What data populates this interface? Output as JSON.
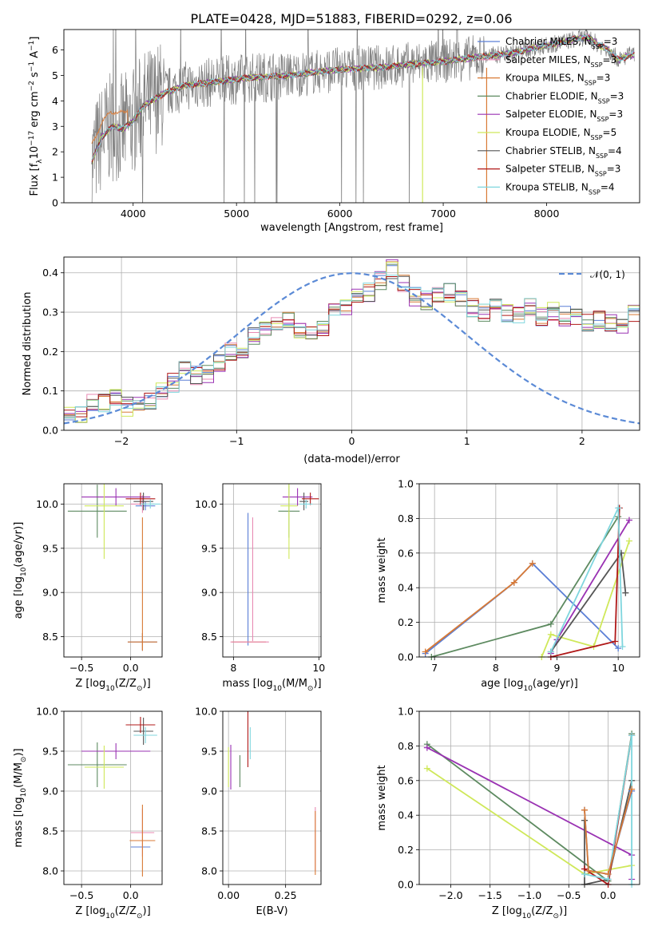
{
  "figure": {
    "title": "PLATE=0428, MJD=51883, FIBERID=0292, z=0.06"
  },
  "colors": {
    "chabrier_miles": "#5b7fd6",
    "salpeter_miles": "#e88ab3",
    "kroupa_miles": "#d97a35",
    "chabrier_elodie": "#5d8a60",
    "salpeter_elodie": "#9a32b3",
    "kroupa_elodie": "#cfe85a",
    "chabrier_stelib": "#555555",
    "salpeter_stelib": "#b01818",
    "kroupa_stelib": "#7fd6de",
    "data": "#808080",
    "gaussian": "#5b8ad6"
  },
  "legend_entries": [
    {
      "name": "Chabrier MILES",
      "suffix": "=3",
      "color": "#5b7fd6"
    },
    {
      "name": "Salpeter MILES",
      "suffix": "=3",
      "color": "#e88ab3"
    },
    {
      "name": "Kroupa MILES",
      "suffix": "=3",
      "color": "#d97a35"
    },
    {
      "name": "Chabrier ELODIE",
      "suffix": "=3",
      "color": "#5d8a60"
    },
    {
      "name": "Salpeter ELODIE",
      "suffix": "=3",
      "color": "#9a32b3"
    },
    {
      "name": "Kroupa ELODIE",
      "suffix": "=5",
      "color": "#cfe85a"
    },
    {
      "name": "Chabrier STELIB",
      "suffix": "=4",
      "color": "#555555"
    },
    {
      "name": "Salpeter STELIB",
      "suffix": "=3",
      "color": "#b01818"
    },
    {
      "name": "Kroupa STELIB",
      "suffix": "=4",
      "color": "#7fd6de"
    }
  ],
  "legend_nssp_prefix": "N",
  "legend_nssp_sub": "SSP",
  "gauss_legend": "𝒩(0, 1)",
  "chart_data": [
    {
      "id": "spectrum",
      "type": "line",
      "xlabel": "wavelength [Angstrom, rest frame]",
      "ylabel_parts": [
        "Flux [f",
        "λ",
        "10",
        "−17",
        " erg cm",
        "−2",
        " s",
        "−1",
        " A",
        "−1",
        "]"
      ],
      "xlim": [
        3330,
        8900
      ],
      "ylim": [
        0,
        6.8
      ],
      "xticks": [
        4000,
        5000,
        6000,
        7000,
        8000
      ],
      "yticks": [
        0,
        1,
        2,
        3,
        4,
        5,
        6
      ],
      "grid": false,
      "legend_position": "right",
      "model_continuum": [
        [
          3600,
          1.6
        ],
        [
          3700,
          2.6
        ],
        [
          3800,
          3.0
        ],
        [
          3900,
          2.9
        ],
        [
          4000,
          3.2
        ],
        [
          4100,
          3.8
        ],
        [
          4300,
          4.3
        ],
        [
          4500,
          4.6
        ],
        [
          4700,
          4.7
        ],
        [
          4900,
          4.8
        ],
        [
          5100,
          4.9
        ],
        [
          5300,
          4.95
        ],
        [
          5500,
          5.0
        ],
        [
          5700,
          5.1
        ],
        [
          5900,
          5.2
        ],
        [
          6100,
          5.25
        ],
        [
          6300,
          5.3
        ],
        [
          6500,
          5.35
        ],
        [
          6700,
          5.45
        ],
        [
          6900,
          5.5
        ],
        [
          7100,
          5.6
        ],
        [
          7300,
          5.7
        ],
        [
          7500,
          5.8
        ],
        [
          7700,
          5.9
        ],
        [
          7900,
          6.1
        ],
        [
          8100,
          6.25
        ],
        [
          8300,
          6.45
        ],
        [
          8400,
          6.5
        ],
        [
          8500,
          6.2
        ],
        [
          8600,
          6.0
        ],
        [
          8700,
          5.6
        ],
        [
          8800,
          5.8
        ]
      ],
      "kroupa_miles_end": 7420
    },
    {
      "id": "residual-histogram",
      "type": "bar",
      "xlabel": "(data-model)/error",
      "ylabel": "Normed distribution",
      "xlim": [
        -2.5,
        2.5
      ],
      "ylim": [
        0,
        0.44
      ],
      "xticks": [
        -2,
        -1,
        0,
        1,
        2
      ],
      "yticks": [
        0.0,
        0.1,
        0.2,
        0.3,
        0.4
      ],
      "grid": true,
      "bin_width": 0.1,
      "bin_start": -2.5,
      "base_values": [
        0.05,
        0.04,
        0.07,
        0.07,
        0.08,
        0.06,
        0.07,
        0.07,
        0.1,
        0.12,
        0.15,
        0.14,
        0.14,
        0.17,
        0.2,
        0.2,
        0.24,
        0.26,
        0.27,
        0.28,
        0.25,
        0.24,
        0.26,
        0.3,
        0.31,
        0.34,
        0.35,
        0.38,
        0.41,
        0.37,
        0.34,
        0.33,
        0.34,
        0.35,
        0.33,
        0.31,
        0.3,
        0.31,
        0.3,
        0.29,
        0.31,
        0.29,
        0.3,
        0.29,
        0.29,
        0.27,
        0.28,
        0.27,
        0.27,
        0.3,
        0.25,
        0.24,
        0.24,
        0.22,
        0.2,
        0.2,
        0.18,
        0.17,
        0.15,
        0.15,
        0.13,
        0.12,
        0.12,
        0.1,
        0.09,
        0.08,
        0.07,
        0.07,
        0.06,
        0.06,
        0.06,
        0.05,
        0.05,
        0.04,
        0.04,
        0.04,
        0.04,
        0.04,
        0.04,
        0.04,
        0.04,
        0.04,
        0.04,
        0.04,
        0.04,
        0.04,
        0.04,
        0.04,
        0.04,
        0.04,
        0.04,
        0.04,
        0.04,
        0.04,
        0.04,
        0.04,
        0.04,
        0.04,
        0.04,
        0.04
      ],
      "gaussian": {
        "mean": 0,
        "sigma": 1
      }
    },
    {
      "id": "age-vs-z",
      "type": "scatter",
      "xlabel_parts": [
        "Z [log",
        "10",
        "(Z/Z",
        "⊙",
        ")]"
      ],
      "ylabel_parts": [
        "age  [log",
        "10",
        "(age/yr)]"
      ],
      "xlim": [
        -0.68,
        0.32
      ],
      "ylim": [
        8.27,
        10.23
      ],
      "xticks": [
        -0.5,
        0.0
      ],
      "yticks": [
        8.5,
        9.0,
        9.5,
        10.0
      ],
      "grid": true,
      "errorbars": [
        {
          "series": "chabrier_miles",
          "x": 0.15,
          "y": 9.98,
          "xerr": 0.1,
          "yerr": 0.05
        },
        {
          "series": "salpeter_miles",
          "x": 0.12,
          "y": 10.0,
          "xerr": 0.12,
          "yerr": 0.1
        },
        {
          "series": "chabrier_elodie",
          "x": -0.34,
          "y": 9.92,
          "xerr": 0.3,
          "yerr": 0.3
        },
        {
          "series": "salpeter_elodie",
          "x": -0.15,
          "y": 10.08,
          "xerr": 0.35,
          "yerr": 0.1
        },
        {
          "series": "kroupa_elodie",
          "x": -0.27,
          "y": 9.98,
          "xerr": 0.2,
          "yerr": 0.6
        },
        {
          "series": "chabrier_stelib",
          "x": 0.13,
          "y": 10.03,
          "xerr": 0.1,
          "yerr": 0.1
        },
        {
          "series": "salpeter_stelib",
          "x": 0.1,
          "y": 10.06,
          "xerr": 0.15,
          "yerr": 0.07
        },
        {
          "series": "kroupa_stelib",
          "x": 0.2,
          "y": 10.0,
          "xerr": 0.1,
          "yerr": 0.05
        },
        {
          "series": "chabrier_miles",
          "x": 0.12,
          "y": 8.44,
          "xerr": 0.15,
          "yerr": 0.1
        },
        {
          "series": "kroupa_miles",
          "x": 0.12,
          "y": 8.44,
          "xerr": 0.15,
          "yerr": 0.1
        },
        {
          "series": "kroupa_miles",
          "x": 0.12,
          "y": 9.1,
          "xerr": 0.0,
          "yerr": 0.75
        }
      ]
    },
    {
      "id": "age-vs-mass",
      "type": "scatter",
      "xlabel_parts": [
        "mass [log",
        "10",
        "(M/M",
        "⊙",
        ")]"
      ],
      "ylabel_parts": [],
      "xlim": [
        7.75,
        10.05
      ],
      "ylim": [
        8.27,
        10.23
      ],
      "xticks": [
        8,
        10
      ],
      "yticks": [
        8.5,
        9.0,
        9.5,
        10.0
      ],
      "grid": true,
      "errorbars": [
        {
          "series": "chabrier_miles",
          "x": 8.34,
          "y": 9.15,
          "xerr": 0.0,
          "yerr": 0.75
        },
        {
          "series": "salpeter_miles",
          "x": 8.45,
          "y": 9.15,
          "xerr": 0.0,
          "yerr": 0.7
        },
        {
          "series": "kroupa_miles",
          "x": 8.36,
          "y": 8.44,
          "xerr": 0.4,
          "yerr": 0.0
        },
        {
          "series": "salpeter_miles",
          "x": 8.38,
          "y": 8.44,
          "xerr": 0.45,
          "yerr": 0.0
        },
        {
          "series": "chabrier_elodie",
          "x": 9.3,
          "y": 9.92,
          "xerr": 0.25,
          "yerr": 0.3
        },
        {
          "series": "salpeter_elodie",
          "x": 9.5,
          "y": 10.08,
          "xerr": 0.35,
          "yerr": 0.1
        },
        {
          "series": "kroupa_elodie",
          "x": 9.3,
          "y": 9.98,
          "xerr": 0.2,
          "yerr": 0.6
        },
        {
          "series": "chabrier_stelib",
          "x": 9.65,
          "y": 10.03,
          "xerr": 0.1,
          "yerr": 0.1
        },
        {
          "series": "salpeter_stelib",
          "x": 9.8,
          "y": 10.06,
          "xerr": 0.2,
          "yerr": 0.07
        },
        {
          "series": "kroupa_stelib",
          "x": 9.7,
          "y": 10.0,
          "xerr": 0.15,
          "yerr": 0.05
        }
      ]
    },
    {
      "id": "massweight-vs-age",
      "type": "line",
      "xlabel_parts": [
        "age  [log",
        "10",
        "(age/yr)]"
      ],
      "ylabel": "mass weight",
      "xlim": [
        6.75,
        10.35
      ],
      "ylim": [
        0,
        1.0
      ],
      "xticks": [
        7,
        8,
        9,
        10
      ],
      "yticks": [
        0.0,
        0.2,
        0.4,
        0.6,
        0.8,
        1.0
      ],
      "grid": true,
      "series": [
        {
          "name": "chabrier_miles",
          "points": [
            [
              6.85,
              0.02
            ],
            [
              8.3,
              0.43
            ],
            [
              8.6,
              0.54
            ],
            [
              10.0,
              0.05
            ]
          ]
        },
        {
          "name": "kroupa_miles",
          "points": [
            [
              6.85,
              0.03
            ],
            [
              8.3,
              0.43
            ],
            [
              8.6,
              0.54
            ]
          ]
        },
        {
          "name": "chabrier_elodie",
          "points": [
            [
              6.95,
              0.0
            ],
            [
              8.9,
              0.19
            ],
            [
              10.0,
              0.81
            ]
          ]
        },
        {
          "name": "salpeter_elodie",
          "points": [
            [
              8.9,
              0.02
            ],
            [
              9.0,
              0.1
            ],
            [
              10.18,
              0.79
            ]
          ]
        },
        {
          "name": "kroupa_elodie",
          "points": [
            [
              8.75,
              0.0
            ],
            [
              8.9,
              0.13
            ],
            [
              9.6,
              0.06
            ],
            [
              10.18,
              0.67
            ]
          ]
        },
        {
          "name": "chabrier_stelib",
          "points": [
            [
              8.9,
              0.03
            ],
            [
              10.05,
              0.6
            ],
            [
              10.12,
              0.37
            ]
          ]
        },
        {
          "name": "salpeter_stelib",
          "points": [
            [
              8.9,
              0.0
            ],
            [
              9.95,
              0.09
            ],
            [
              10.02,
              0.86
            ]
          ]
        },
        {
          "name": "kroupa_stelib",
          "points": [
            [
              8.9,
              0.03
            ],
            [
              10.0,
              0.86
            ],
            [
              10.07,
              0.06
            ]
          ]
        }
      ]
    },
    {
      "id": "mass-vs-z",
      "type": "scatter",
      "xlabel_parts": [
        "Z [log",
        "10",
        "(Z/Z",
        "⊙",
        ")]"
      ],
      "ylabel_parts": [
        "mass [log",
        "10",
        "(M/M",
        "⊙",
        ")]"
      ],
      "xlim": [
        -0.68,
        0.32
      ],
      "ylim": [
        7.83,
        10.0
      ],
      "xticks": [
        -0.5,
        0.0
      ],
      "yticks": [
        8.0,
        8.5,
        9.0,
        9.5,
        10.0
      ],
      "grid": true,
      "errorbars": [
        {
          "series": "chabrier_miles",
          "x": 0.1,
          "y": 8.3,
          "xerr": 0.1,
          "yerr": 0.0
        },
        {
          "series": "salpeter_miles",
          "x": 0.12,
          "y": 8.48,
          "xerr": 0.12,
          "yerr": 0.3
        },
        {
          "series": "kroupa_miles",
          "x": 0.12,
          "y": 8.38,
          "xerr": 0.13,
          "yerr": 0.45
        },
        {
          "series": "chabrier_elodie",
          "x": -0.34,
          "y": 9.33,
          "xerr": 0.3,
          "yerr": 0.28
        },
        {
          "series": "salpeter_elodie",
          "x": -0.15,
          "y": 9.5,
          "xerr": 0.35,
          "yerr": 0.1
        },
        {
          "series": "kroupa_elodie",
          "x": -0.27,
          "y": 9.3,
          "xerr": 0.2,
          "yerr": 0.27
        },
        {
          "series": "chabrier_stelib",
          "x": 0.13,
          "y": 9.75,
          "xerr": 0.1,
          "yerr": 0.17
        },
        {
          "series": "salpeter_stelib",
          "x": 0.1,
          "y": 9.83,
          "xerr": 0.15,
          "yerr": 0.1
        },
        {
          "series": "kroupa_stelib",
          "x": 0.15,
          "y": 9.7,
          "xerr": 0.12,
          "yerr": 0.1
        }
      ]
    },
    {
      "id": "mass-vs-ebv",
      "type": "scatter",
      "xlabel": "E(B-V)",
      "ylabel_parts": [],
      "xlim": [
        -0.025,
        0.405
      ],
      "ylim": [
        7.83,
        10.0
      ],
      "xticks": [
        0.0,
        0.25
      ],
      "xtick_labels": [
        "0.00",
        "0.25"
      ],
      "yticks": [
        8.0,
        8.5,
        9.0,
        9.5,
        10.0
      ],
      "grid": true,
      "errorbars": [
        {
          "series": "kroupa_elodie",
          "x": 0.0,
          "y": 9.3,
          "xerr": 0.0,
          "yerr": 0.25
        },
        {
          "series": "salpeter_elodie",
          "x": 0.01,
          "y": 9.3,
          "xerr": 0.0,
          "yerr": 0.28
        },
        {
          "series": "chabrier_elodie",
          "x": 0.05,
          "y": 9.25,
          "xerr": 0.0,
          "yerr": 0.2
        },
        {
          "series": "salpeter_stelib",
          "x": 0.085,
          "y": 9.65,
          "xerr": 0.0,
          "yerr": 0.35
        },
        {
          "series": "kroupa_stelib",
          "x": 0.095,
          "y": 9.6,
          "xerr": 0.0,
          "yerr": 0.2
        },
        {
          "series": "salpeter_miles",
          "x": 0.38,
          "y": 8.4,
          "xerr": 0.0,
          "yerr": 0.4
        },
        {
          "series": "kroupa_miles",
          "x": 0.38,
          "y": 8.35,
          "xerr": 0.0,
          "yerr": 0.4
        }
      ]
    },
    {
      "id": "massweight-vs-z",
      "type": "line",
      "xlabel_parts": [
        "Z [log",
        "10",
        "(Z/Z",
        "⊙",
        ")]"
      ],
      "ylabel": "mass weight",
      "xlim": [
        -2.4,
        0.4
      ],
      "ylim": [
        0,
        1.0
      ],
      "xticks": [
        -2.0,
        -1.5,
        -1.0,
        -0.5,
        0.0
      ],
      "yticks": [
        0.0,
        0.2,
        0.4,
        0.6,
        0.8,
        1.0
      ],
      "grid": true,
      "series": [
        {
          "name": "chabrier_elodie",
          "points": [
            [
              -2.3,
              0.81
            ],
            [
              0.0,
              0.02
            ],
            [
              0.3,
              0.87
            ]
          ]
        },
        {
          "name": "salpeter_elodie",
          "points": [
            [
              -2.3,
              0.79
            ],
            [
              0.3,
              0.17
            ],
            [
              0.3,
              0.03
            ]
          ]
        },
        {
          "name": "kroupa_elodie",
          "points": [
            [
              -2.3,
              0.67
            ],
            [
              -0.3,
              0.06
            ],
            [
              0.3,
              0.11
            ]
          ]
        },
        {
          "name": "chabrier_stelib",
          "points": [
            [
              -0.3,
              0.37
            ],
            [
              -0.3,
              0.0
            ],
            [
              0.0,
              0.03
            ],
            [
              0.3,
              0.6
            ]
          ]
        },
        {
          "name": "salpeter_stelib",
          "points": [
            [
              -0.3,
              0.09
            ],
            [
              0.0,
              0.0
            ],
            [
              0.3,
              0.86
            ]
          ]
        },
        {
          "name": "kroupa_stelib",
          "points": [
            [
              -0.3,
              0.06
            ],
            [
              0.0,
              0.03
            ],
            [
              0.3,
              0.86
            ],
            [
              0.3,
              0.0
            ]
          ]
        },
        {
          "name": "chabrier_miles",
          "points": [
            [
              -0.3,
              0.43
            ],
            [
              -0.25,
              0.08
            ],
            [
              0.0,
              0.06
            ],
            [
              0.3,
              0.54
            ]
          ]
        },
        {
          "name": "kroupa_miles",
          "points": [
            [
              -0.3,
              0.43
            ],
            [
              -0.25,
              0.08
            ],
            [
              0.0,
              0.06
            ],
            [
              0.3,
              0.55
            ]
          ]
        }
      ]
    }
  ]
}
